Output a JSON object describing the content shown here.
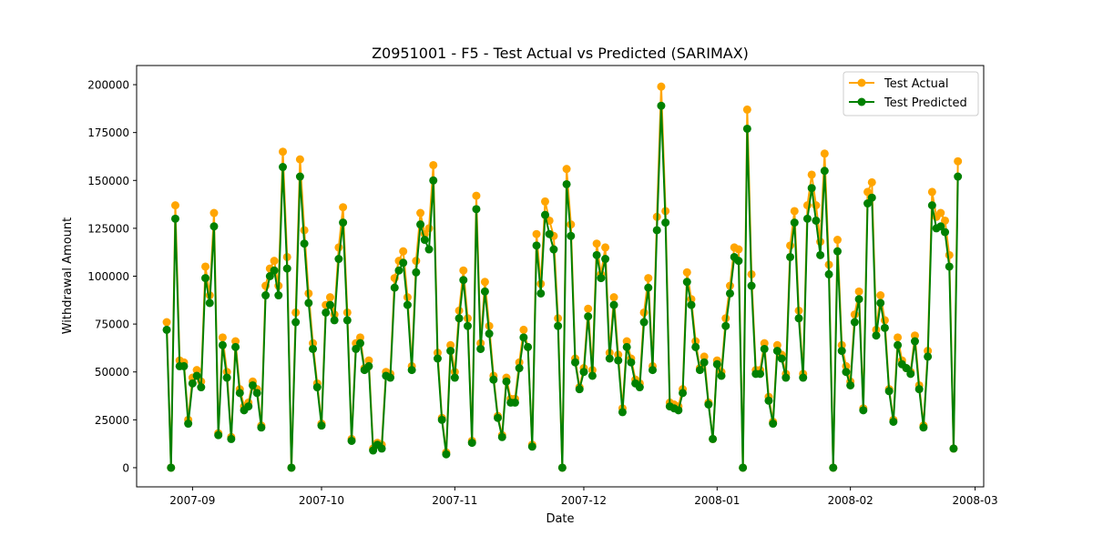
{
  "chart_data": {
    "type": "line",
    "title": "Z0951001 - F5 - Test Actual vs Predicted (SARIMAX)",
    "xlabel": "Date",
    "ylabel": "Withdrawal Amount",
    "xlim": [
      "2007-08-19",
      "2008-03-03"
    ],
    "ylim": [
      -10000,
      210000
    ],
    "x_ticks": [
      "2007-09",
      "2007-10",
      "2007-11",
      "2007-12",
      "2008-01",
      "2008-02",
      "2008-03"
    ],
    "y_ticks": [
      0,
      25000,
      50000,
      75000,
      100000,
      125000,
      150000,
      175000,
      200000
    ],
    "y_tick_labels": [
      "0",
      "25000",
      "50000",
      "75000",
      "100000",
      "125000",
      "150000",
      "175000",
      "200000"
    ],
    "legend": {
      "placement": "upper right",
      "entries": [
        "Test Actual",
        "Test Predicted"
      ]
    },
    "grid": false,
    "marker": "circle",
    "x_start": "2007-08-26",
    "series": [
      {
        "name": "Test Actual",
        "color": "#FFA500",
        "values": [
          76000,
          0,
          137000,
          56000,
          55000,
          25000,
          47000,
          51000,
          45000,
          105000,
          90000,
          133000,
          18000,
          68000,
          50000,
          16000,
          66000,
          41000,
          32000,
          34000,
          45000,
          41000,
          22000,
          95000,
          104000,
          108000,
          95000,
          165000,
          110000,
          0,
          81000,
          161000,
          124000,
          91000,
          65000,
          44000,
          23000,
          85000,
          89000,
          80000,
          115000,
          136000,
          81000,
          15000,
          65000,
          68000,
          52000,
          56000,
          10000,
          13000,
          12000,
          50000,
          49000,
          99000,
          108000,
          113000,
          89000,
          53000,
          108000,
          133000,
          122000,
          125000,
          158000,
          60000,
          26000,
          8000,
          64000,
          50000,
          82000,
          103000,
          78000,
          14000,
          142000,
          65000,
          97000,
          74000,
          48000,
          27000,
          17000,
          47000,
          36000,
          36000,
          55000,
          72000,
          63000,
          12000,
          122000,
          96000,
          139000,
          129000,
          121000,
          78000,
          0,
          156000,
          127000,
          57000,
          42000,
          52000,
          83000,
          51000,
          117000,
          101000,
          115000,
          60000,
          89000,
          59000,
          31000,
          66000,
          57000,
          46000,
          44000,
          81000,
          99000,
          53000,
          131000,
          199000,
          134000,
          34000,
          33000,
          32000,
          41000,
          102000,
          88000,
          66000,
          52000,
          58000,
          34000,
          15000,
          56000,
          50000,
          78000,
          95000,
          115000,
          114000,
          0,
          187000,
          101000,
          51000,
          51000,
          65000,
          37000,
          24000,
          64000,
          59000,
          49000,
          116000,
          134000,
          82000,
          49000,
          137000,
          153000,
          137000,
          118000,
          164000,
          106000,
          0,
          119000,
          64000,
          53000,
          45000,
          80000,
          92000,
          31000,
          144000,
          149000,
          72000,
          90000,
          77000,
          41000,
          25000,
          68000,
          56000,
          52000,
          50000,
          69000,
          43000,
          22000,
          61000,
          144000,
          131000,
          133000,
          129000,
          111000,
          10000,
          160000
        ]
      },
      {
        "name": "Test Predicted",
        "color": "#008000",
        "values": [
          72000,
          0,
          130000,
          53000,
          53000,
          23000,
          44000,
          48000,
          42000,
          99000,
          86000,
          126000,
          17000,
          64000,
          47000,
          15000,
          63000,
          39000,
          30000,
          32000,
          43000,
          39000,
          21000,
          90000,
          100000,
          103000,
          90000,
          157000,
          104000,
          0,
          76000,
          152000,
          117000,
          86000,
          62000,
          42000,
          22000,
          81000,
          85000,
          77000,
          109000,
          128000,
          77000,
          14000,
          62000,
          65000,
          51000,
          53000,
          9000,
          12000,
          10000,
          48000,
          47000,
          94000,
          103000,
          107000,
          85000,
          51000,
          102000,
          127000,
          119000,
          114000,
          150000,
          57000,
          25000,
          7000,
          61000,
          47000,
          78000,
          98000,
          74000,
          13000,
          135000,
          62000,
          92000,
          70000,
          46000,
          26000,
          16000,
          45000,
          34000,
          34000,
          52000,
          68000,
          63000,
          11000,
          116000,
          91000,
          132000,
          122000,
          114000,
          74000,
          0,
          148000,
          121000,
          55000,
          41000,
          50000,
          79000,
          48000,
          111000,
          99000,
          109000,
          57000,
          85000,
          56000,
          29000,
          63000,
          55000,
          44000,
          42000,
          76000,
          94000,
          51000,
          124000,
          189000,
          128000,
          32000,
          31000,
          30000,
          39000,
          97000,
          85000,
          63000,
          51000,
          55000,
          33000,
          15000,
          54000,
          48000,
          74000,
          91000,
          110000,
          108000,
          0,
          177000,
          95000,
          49000,
          49000,
          62000,
          35000,
          23000,
          61000,
          57000,
          47000,
          110000,
          128000,
          78000,
          47000,
          130000,
          146000,
          129000,
          111000,
          155000,
          101000,
          0,
          113000,
          61000,
          50000,
          43000,
          76000,
          88000,
          30000,
          138000,
          141000,
          69000,
          86000,
          73000,
          40000,
          24000,
          64000,
          54000,
          52000,
          49000,
          66000,
          41000,
          21000,
          58000,
          137000,
          125000,
          126000,
          123000,
          105000,
          10000,
          152000
        ]
      }
    ]
  }
}
